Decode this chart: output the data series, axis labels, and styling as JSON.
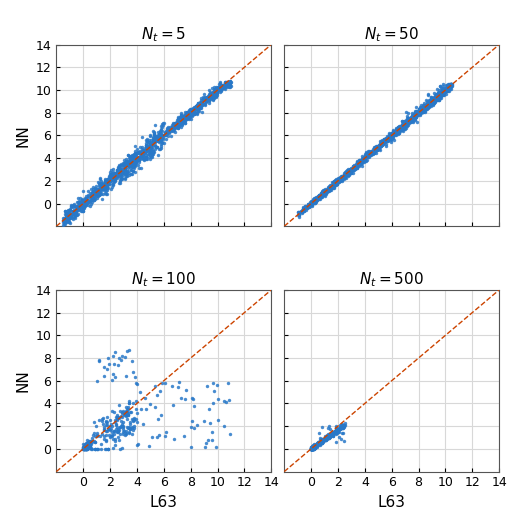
{
  "titles": [
    "$N_t = 5$",
    "$N_t = 50$",
    "$N_t = 100$",
    "$N_t = 500$"
  ],
  "xlabel": "L63",
  "ylabel": "NN",
  "xlim": [
    -2,
    14
  ],
  "ylim": [
    -2,
    14
  ],
  "xticks": [
    0,
    2,
    4,
    6,
    8,
    10,
    12,
    14
  ],
  "yticks": [
    0,
    2,
    4,
    6,
    8,
    10,
    12,
    14
  ],
  "diag_color": "#cc4400",
  "scatter_color": "#2878c8",
  "scatter_size": 6,
  "scatter_alpha": 0.85,
  "title_fontsize": 11,
  "label_fontsize": 11,
  "tick_fontsize": 9,
  "background_color": "#ffffff",
  "grid_color": "#d8d8d8",
  "grid_linewidth": 0.8
}
